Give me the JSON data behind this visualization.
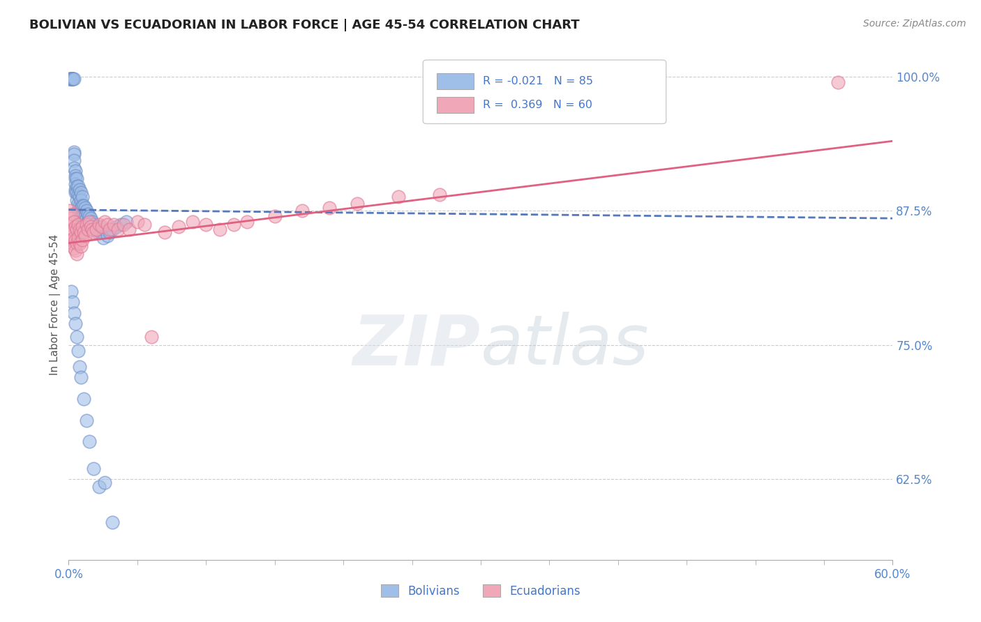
{
  "title": "BOLIVIAN VS ECUADORIAN IN LABOR FORCE | AGE 45-54 CORRELATION CHART",
  "source": "Source: ZipAtlas.com",
  "ylabel": "In Labor Force | Age 45-54",
  "xmin": 0.0,
  "xmax": 0.6,
  "ymin": 0.55,
  "ymax": 1.025,
  "yticks": [
    0.625,
    0.75,
    0.875,
    1.0
  ],
  "ytick_labels": [
    "62.5%",
    "75.0%",
    "87.5%",
    "100.0%"
  ],
  "blue_R": -0.021,
  "blue_N": 85,
  "pink_R": 0.369,
  "pink_N": 60,
  "blue_color": "#a0bfe8",
  "pink_color": "#f0a8b8",
  "blue_edge_color": "#7090c8",
  "pink_edge_color": "#e07898",
  "blue_line_color": "#5577bb",
  "pink_line_color": "#e06080",
  "legend_text_color": "#4477cc",
  "axis_label_color": "#5588cc",
  "background_color": "#ffffff",
  "grid_color": "#cccccc",
  "title_color": "#222222",
  "source_color": "#888888",
  "watermark": "ZIPatlas",
  "blue_line_x0": 0.0,
  "blue_line_x1": 0.6,
  "blue_line_y0": 0.876,
  "blue_line_y1": 0.868,
  "pink_line_x0": 0.0,
  "pink_line_x1": 0.6,
  "pink_line_y0": 0.845,
  "pink_line_y1": 0.94,
  "fig_width": 14.06,
  "fig_height": 8.92,
  "blue_scatter_x": [
    0.001,
    0.001,
    0.002,
    0.002,
    0.002,
    0.003,
    0.003,
    0.003,
    0.003,
    0.004,
    0.004,
    0.004,
    0.004,
    0.004,
    0.005,
    0.005,
    0.005,
    0.005,
    0.005,
    0.005,
    0.006,
    0.006,
    0.006,
    0.006,
    0.007,
    0.007,
    0.007,
    0.007,
    0.008,
    0.008,
    0.008,
    0.008,
    0.009,
    0.009,
    0.009,
    0.009,
    0.01,
    0.01,
    0.01,
    0.01,
    0.011,
    0.011,
    0.011,
    0.012,
    0.012,
    0.012,
    0.013,
    0.013,
    0.014,
    0.014,
    0.015,
    0.015,
    0.016,
    0.016,
    0.017,
    0.018,
    0.019,
    0.02,
    0.021,
    0.022,
    0.023,
    0.025,
    0.025,
    0.026,
    0.028,
    0.03,
    0.032,
    0.035,
    0.038,
    0.042,
    0.002,
    0.003,
    0.004,
    0.005,
    0.006,
    0.007,
    0.008,
    0.009,
    0.011,
    0.013,
    0.015,
    0.018,
    0.022,
    0.026,
    0.032
  ],
  "blue_scatter_y": [
    0.998,
    0.998,
    0.998,
    0.998,
    0.998,
    0.998,
    0.998,
    0.998,
    0.998,
    0.998,
    0.93,
    0.928,
    0.922,
    0.915,
    0.912,
    0.908,
    0.905,
    0.9,
    0.895,
    0.892,
    0.905,
    0.898,
    0.892,
    0.885,
    0.898,
    0.89,
    0.882,
    0.875,
    0.895,
    0.888,
    0.88,
    0.872,
    0.892,
    0.885,
    0.878,
    0.87,
    0.888,
    0.88,
    0.872,
    0.865,
    0.88,
    0.872,
    0.865,
    0.878,
    0.87,
    0.862,
    0.875,
    0.868,
    0.872,
    0.865,
    0.87,
    0.863,
    0.868,
    0.86,
    0.865,
    0.862,
    0.858,
    0.86,
    0.855,
    0.858,
    0.855,
    0.855,
    0.85,
    0.858,
    0.852,
    0.855,
    0.858,
    0.86,
    0.862,
    0.865,
    0.8,
    0.79,
    0.78,
    0.77,
    0.758,
    0.745,
    0.73,
    0.72,
    0.7,
    0.68,
    0.66,
    0.635,
    0.618,
    0.622,
    0.585
  ],
  "pink_scatter_x": [
    0.001,
    0.001,
    0.002,
    0.002,
    0.002,
    0.003,
    0.003,
    0.003,
    0.004,
    0.004,
    0.004,
    0.005,
    0.005,
    0.005,
    0.006,
    0.006,
    0.006,
    0.007,
    0.007,
    0.008,
    0.008,
    0.009,
    0.009,
    0.01,
    0.01,
    0.011,
    0.012,
    0.013,
    0.014,
    0.015,
    0.016,
    0.017,
    0.018,
    0.02,
    0.022,
    0.024,
    0.026,
    0.028,
    0.03,
    0.033,
    0.036,
    0.04,
    0.044,
    0.05,
    0.055,
    0.06,
    0.07,
    0.08,
    0.09,
    0.1,
    0.11,
    0.12,
    0.13,
    0.15,
    0.17,
    0.19,
    0.21,
    0.24,
    0.27,
    0.56
  ],
  "pink_scatter_y": [
    0.875,
    0.862,
    0.868,
    0.855,
    0.848,
    0.872,
    0.858,
    0.845,
    0.865,
    0.85,
    0.84,
    0.86,
    0.848,
    0.838,
    0.858,
    0.845,
    0.835,
    0.862,
    0.85,
    0.858,
    0.845,
    0.855,
    0.842,
    0.86,
    0.848,
    0.855,
    0.852,
    0.862,
    0.858,
    0.865,
    0.86,
    0.858,
    0.855,
    0.858,
    0.862,
    0.86,
    0.865,
    0.862,
    0.858,
    0.862,
    0.858,
    0.862,
    0.858,
    0.865,
    0.862,
    0.758,
    0.855,
    0.86,
    0.865,
    0.862,
    0.858,
    0.862,
    0.865,
    0.87,
    0.875,
    0.878,
    0.882,
    0.888,
    0.89,
    0.995
  ]
}
